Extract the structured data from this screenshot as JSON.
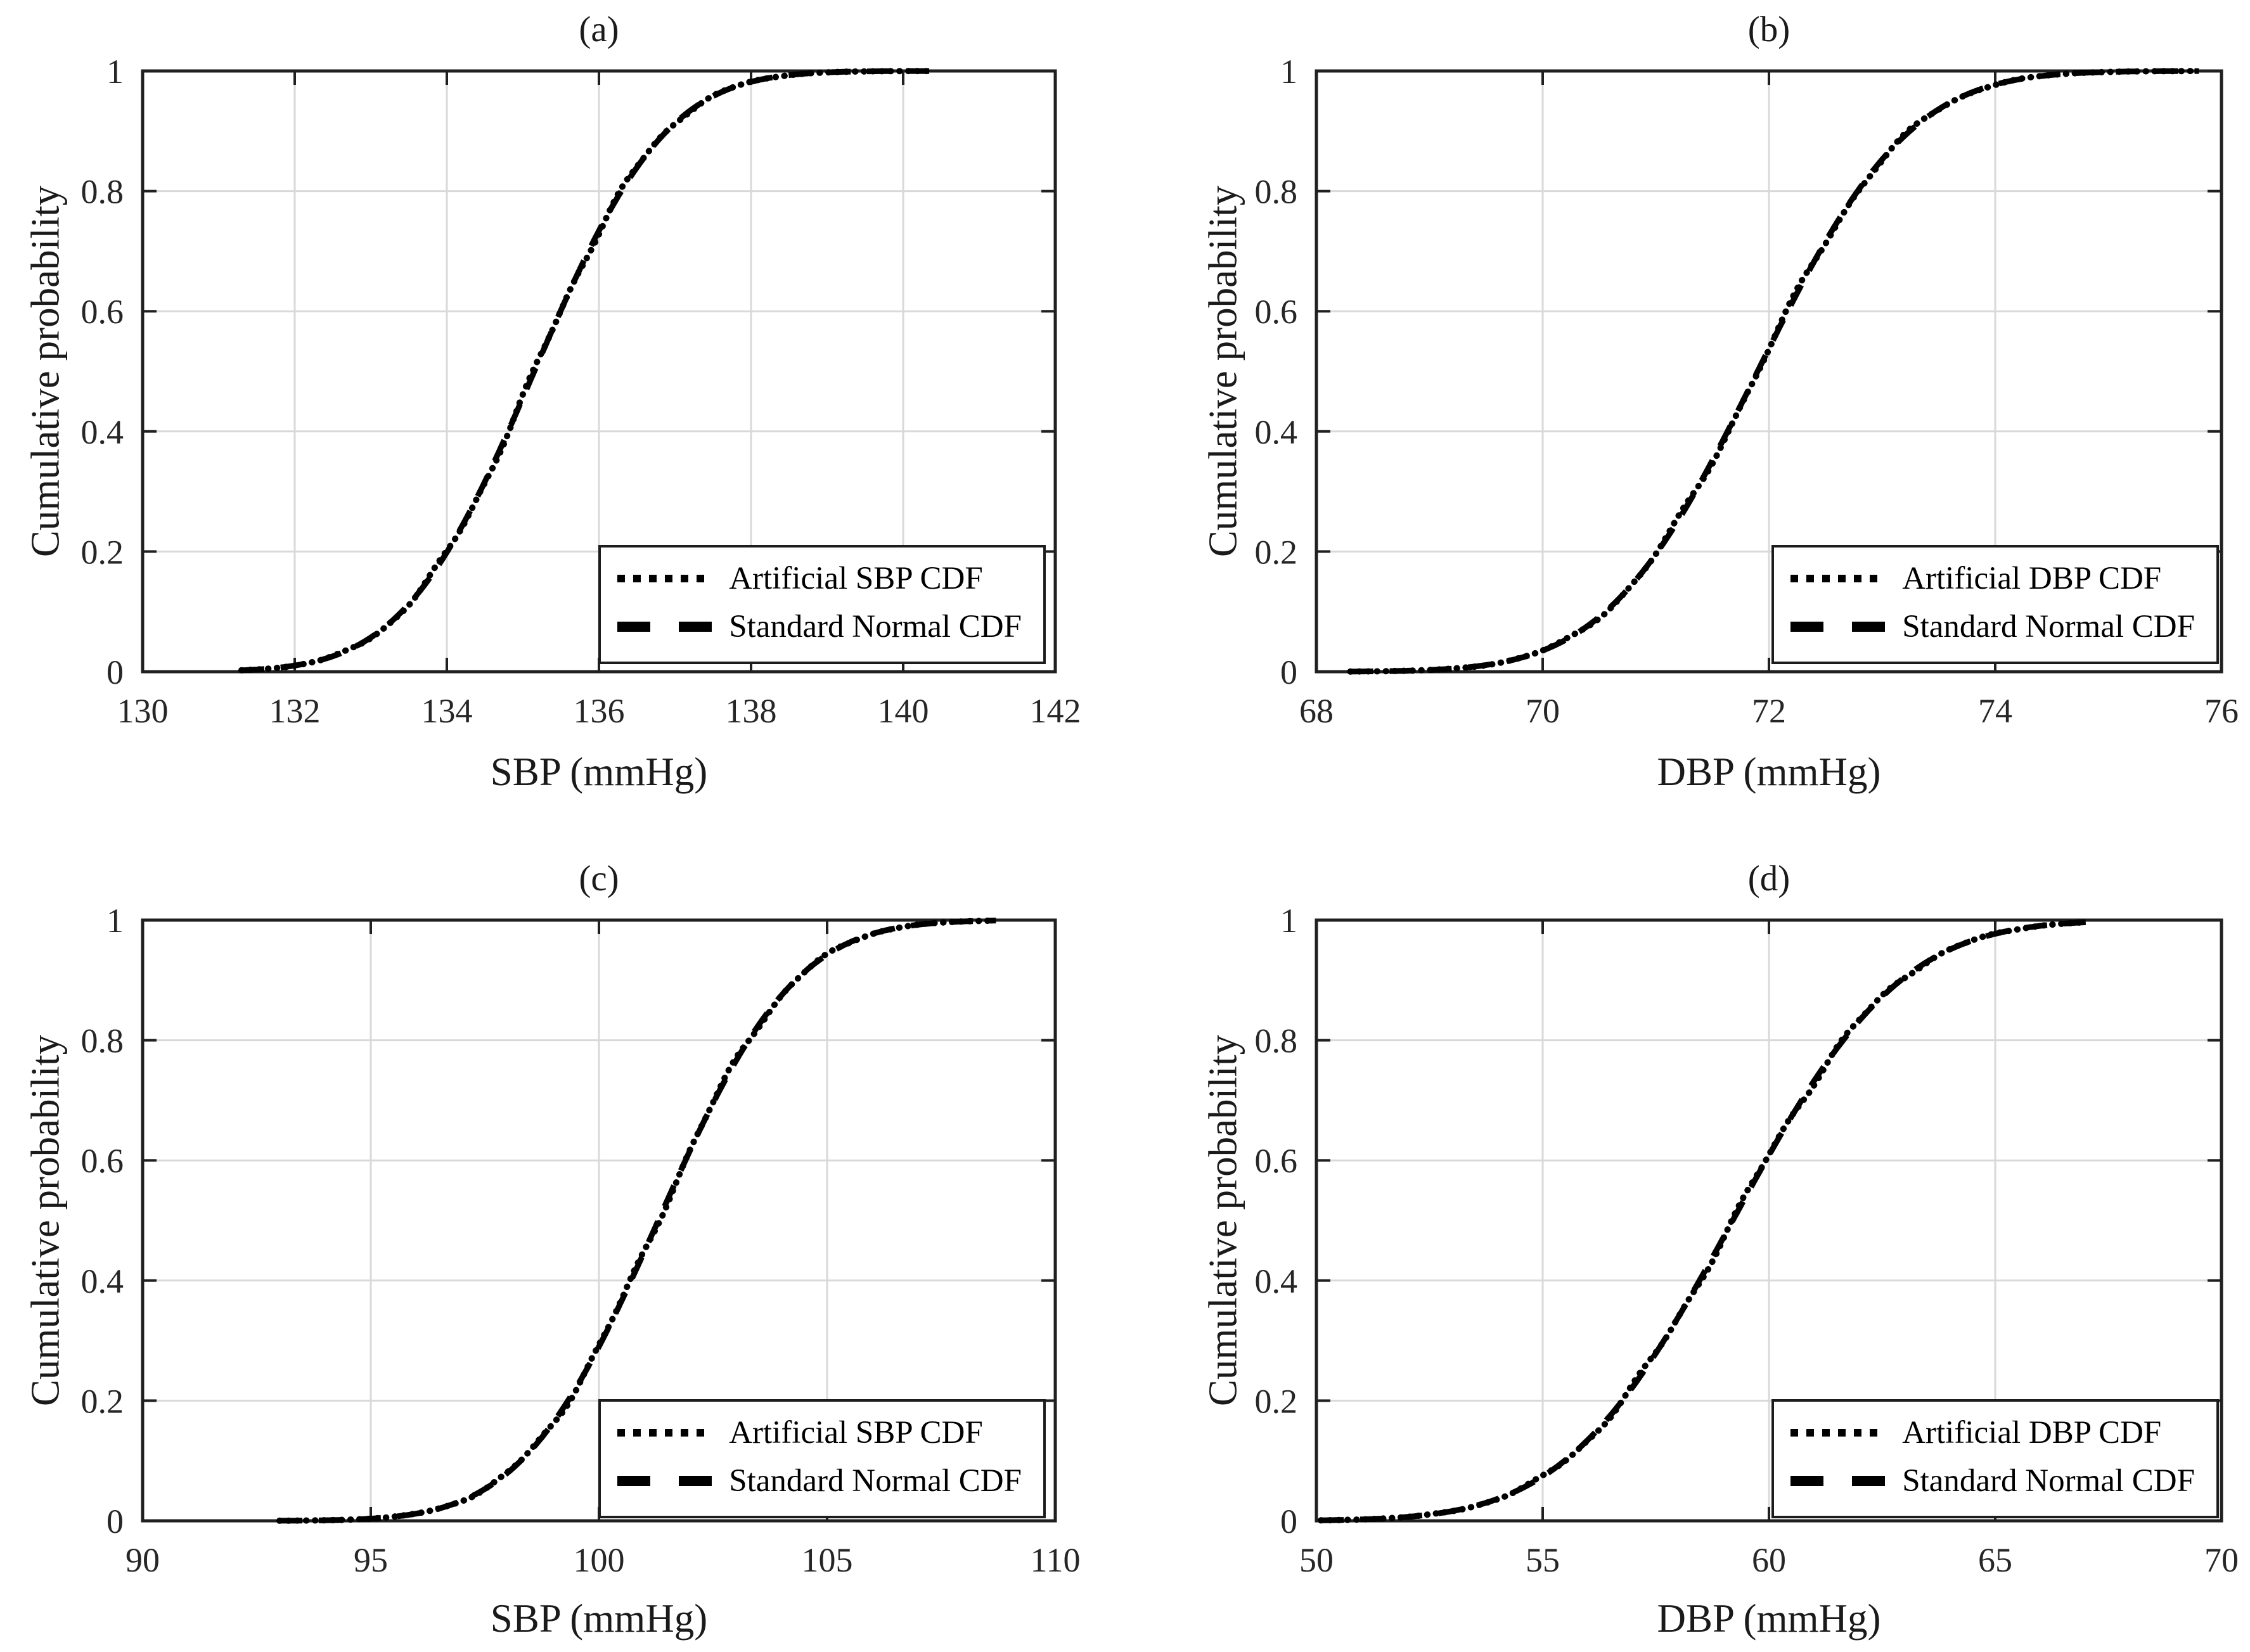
{
  "figure": {
    "background": "#ffffff",
    "ylabel_shared": "Cumulative probability"
  },
  "colors": {
    "curve": "#000000",
    "axis_box": "#202020",
    "grid": "#d9d9d9",
    "tick_text": "#262626",
    "legend_border": "#1c1c1c"
  },
  "chart_data": [
    {
      "id": "a",
      "type": "line",
      "title": "(a)",
      "xlabel": "SBP (mmHg)",
      "ylabel": "Cumulative probability",
      "xlim": [
        130,
        142
      ],
      "ylim": [
        0,
        1
      ],
      "xticks": [
        130,
        132,
        134,
        136,
        138,
        140,
        142
      ],
      "xtick_labels": [
        "130",
        "132",
        "134",
        "136",
        "138",
        "140",
        "142"
      ],
      "yticks": [
        0,
        0.2,
        0.4,
        0.6,
        0.8,
        1
      ],
      "ytick_labels": [
        "0",
        "0.2",
        "0.4",
        "0.6",
        "0.8",
        "1"
      ],
      "grid": true,
      "legend_position": "lower right",
      "series": [
        {
          "name": "Artificial SBP CDF",
          "style": "dotted",
          "distribution": "empirical-normal-cdf",
          "mean": 135.15,
          "sd": 1.36,
          "x_start": 131.3,
          "x_end": 140.4
        },
        {
          "name": "Standard Normal CDF",
          "style": "dashed",
          "distribution": "normal-cdf",
          "mean": 135.15,
          "sd": 1.36,
          "x_start": 131.3,
          "x_end": 140.4
        }
      ],
      "cdf_points": [
        [
          131.3,
          0.002
        ],
        [
          132,
          0.01
        ],
        [
          132.5,
          0.026
        ],
        [
          133,
          0.057
        ],
        [
          133.5,
          0.112
        ],
        [
          134,
          0.199
        ],
        [
          134.5,
          0.316
        ],
        [
          135,
          0.456
        ],
        [
          135.5,
          0.601
        ],
        [
          136,
          0.734
        ],
        [
          136.5,
          0.84
        ],
        [
          137,
          0.913
        ],
        [
          137.5,
          0.958
        ],
        [
          138,
          0.982
        ],
        [
          138.5,
          0.993
        ],
        [
          139,
          0.998
        ],
        [
          139.5,
          0.999
        ],
        [
          140.4,
          1.0
        ]
      ]
    },
    {
      "id": "b",
      "type": "line",
      "title": "(b)",
      "xlabel": "DBP (mmHg)",
      "ylabel": "Cumulative probability",
      "xlim": [
        68,
        76
      ],
      "ylim": [
        0,
        1
      ],
      "xticks": [
        68,
        70,
        72,
        74,
        76
      ],
      "xtick_labels": [
        "68",
        "70",
        "72",
        "74",
        "76"
      ],
      "yticks": [
        0,
        0.2,
        0.4,
        0.6,
        0.8,
        1
      ],
      "ytick_labels": [
        "0",
        "0.2",
        "0.4",
        "0.6",
        "0.8",
        "1"
      ],
      "grid": true,
      "legend_position": "lower right",
      "series": [
        {
          "name": "Artificial DBP CDF",
          "style": "dotted",
          "distribution": "empirical-normal-cdf",
          "mean": 71.9,
          "sd": 1.05,
          "x_start": 68.3,
          "x_end": 75.8
        },
        {
          "name": "Standard Normal CDF",
          "style": "dashed",
          "distribution": "normal-cdf",
          "mean": 71.9,
          "sd": 1.05,
          "x_start": 68.3,
          "x_end": 75.8
        }
      ],
      "cdf_points": [
        [
          68.3,
          0.0
        ],
        [
          69,
          0.003
        ],
        [
          69.5,
          0.011
        ],
        [
          70,
          0.035
        ],
        [
          70.5,
          0.091
        ],
        [
          71,
          0.196
        ],
        [
          71.5,
          0.352
        ],
        [
          72,
          0.538
        ],
        [
          72.5,
          0.716
        ],
        [
          73,
          0.853
        ],
        [
          73.5,
          0.936
        ],
        [
          74,
          0.977
        ],
        [
          74.5,
          0.993
        ],
        [
          75,
          0.998
        ],
        [
          75.8,
          1.0
        ]
      ]
    },
    {
      "id": "c",
      "type": "line",
      "title": "(c)",
      "xlabel": "SBP (mmHg)",
      "ylabel": "Cumulative probability",
      "xlim": [
        90,
        110
      ],
      "ylim": [
        0,
        1
      ],
      "xticks": [
        90,
        95,
        100,
        105,
        110
      ],
      "xtick_labels": [
        "90",
        "95",
        "100",
        "105",
        "110"
      ],
      "yticks": [
        0,
        0.2,
        0.4,
        0.6,
        0.8,
        1
      ],
      "ytick_labels": [
        "0",
        "0.2",
        "0.4",
        "0.6",
        "0.8",
        "1"
      ],
      "grid": true,
      "legend_position": "lower right",
      "series": [
        {
          "name": "Artificial SBP CDF",
          "style": "dotted",
          "distribution": "empirical-normal-cdf",
          "mean": 101.3,
          "sd": 2.35,
          "x_start": 93.0,
          "x_end": 108.7
        },
        {
          "name": "Standard Normal CDF",
          "style": "dashed",
          "distribution": "normal-cdf",
          "mean": 101.3,
          "sd": 2.35,
          "x_start": 93.0,
          "x_end": 108.7
        }
      ],
      "cdf_points": [
        [
          93,
          0.0
        ],
        [
          94,
          0.001
        ],
        [
          95,
          0.004
        ],
        [
          96,
          0.012
        ],
        [
          97,
          0.034
        ],
        [
          98,
          0.08
        ],
        [
          99,
          0.164
        ],
        [
          100,
          0.29
        ],
        [
          101,
          0.449
        ],
        [
          102,
          0.617
        ],
        [
          103,
          0.765
        ],
        [
          104,
          0.875
        ],
        [
          105,
          0.942
        ],
        [
          106,
          0.977
        ],
        [
          107,
          0.992
        ],
        [
          108,
          0.998
        ],
        [
          108.7,
          0.999
        ]
      ]
    },
    {
      "id": "d",
      "type": "line",
      "title": "(d)",
      "xlabel": "DBP (mmHg)",
      "ylabel": "Cumulative probability",
      "xlim": [
        50,
        70
      ],
      "ylim": [
        0,
        1
      ],
      "xticks": [
        50,
        55,
        60,
        65,
        70
      ],
      "xtick_labels": [
        "50",
        "55",
        "60",
        "65",
        "70"
      ],
      "yticks": [
        0,
        0.2,
        0.4,
        0.6,
        0.8,
        1
      ],
      "ytick_labels": [
        "0",
        "0.2",
        "0.4",
        "0.6",
        "0.8",
        "1"
      ],
      "grid": true,
      "legend_position": "lower right",
      "series": [
        {
          "name": "Artificial DBP CDF",
          "style": "dotted",
          "distribution": "empirical-normal-cdf",
          "mean": 59.2,
          "sd": 2.9,
          "x_start": 50.1,
          "x_end": 67.0
        },
        {
          "name": "Standard Normal CDF",
          "style": "dashed",
          "distribution": "normal-cdf",
          "mean": 59.2,
          "sd": 2.9,
          "x_start": 50.1,
          "x_end": 67.0
        }
      ],
      "cdf_points": [
        [
          50.1,
          0.001
        ],
        [
          51,
          0.002
        ],
        [
          52,
          0.007
        ],
        [
          53,
          0.016
        ],
        [
          54,
          0.037
        ],
        [
          55,
          0.074
        ],
        [
          56,
          0.135
        ],
        [
          57,
          0.224
        ],
        [
          58,
          0.34
        ],
        [
          59,
          0.472
        ],
        [
          60,
          0.609
        ],
        [
          61,
          0.733
        ],
        [
          62,
          0.833
        ],
        [
          63,
          0.905
        ],
        [
          64,
          0.951
        ],
        [
          65,
          0.977
        ],
        [
          66,
          0.99
        ],
        [
          67,
          0.996
        ]
      ]
    }
  ]
}
